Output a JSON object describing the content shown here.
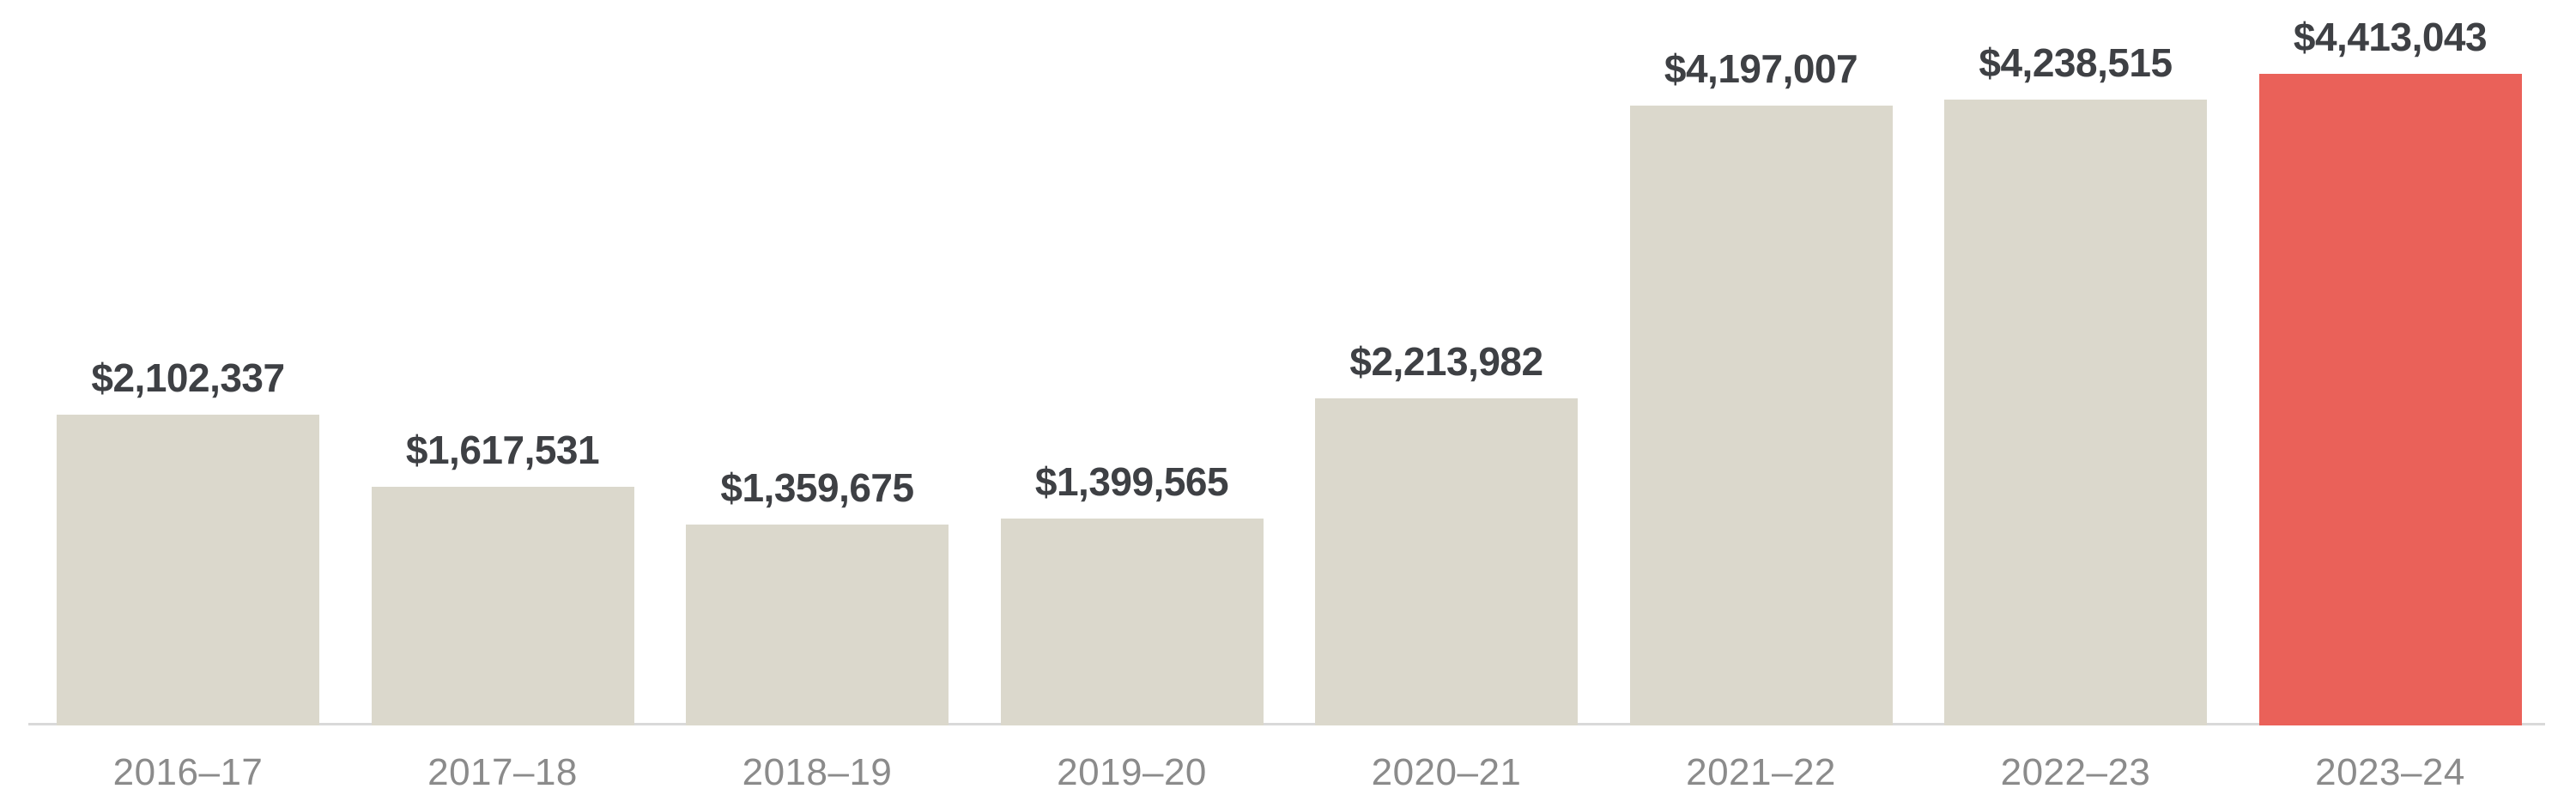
{
  "chart_data": {
    "type": "bar",
    "categories": [
      "2016–17",
      "2017–18",
      "2018–19",
      "2019–20",
      "2020–21",
      "2021–22",
      "2022–23",
      "2023–24"
    ],
    "values": [
      2102337,
      1617531,
      1359675,
      1399565,
      2213982,
      4197007,
      4238515,
      4413043
    ],
    "value_labels": [
      "$2,102,337",
      "$1,617,531",
      "$1,359,675",
      "$1,399,565",
      "$2,213,982",
      "$4,197,007",
      "$4,238,515",
      "$4,413,043"
    ],
    "title": "",
    "xlabel": "",
    "ylabel": "",
    "ylim": [
      0,
      4413043
    ],
    "grid": false,
    "legend": false,
    "highlight_index": 7,
    "colors": {
      "bar": "#dbd8cc",
      "highlight_bar": "#ea6159",
      "value_label": "#3e4044",
      "category_label": "#8b8b8b",
      "axis_line": "#d9d9d9",
      "background": "#ffffff"
    }
  }
}
